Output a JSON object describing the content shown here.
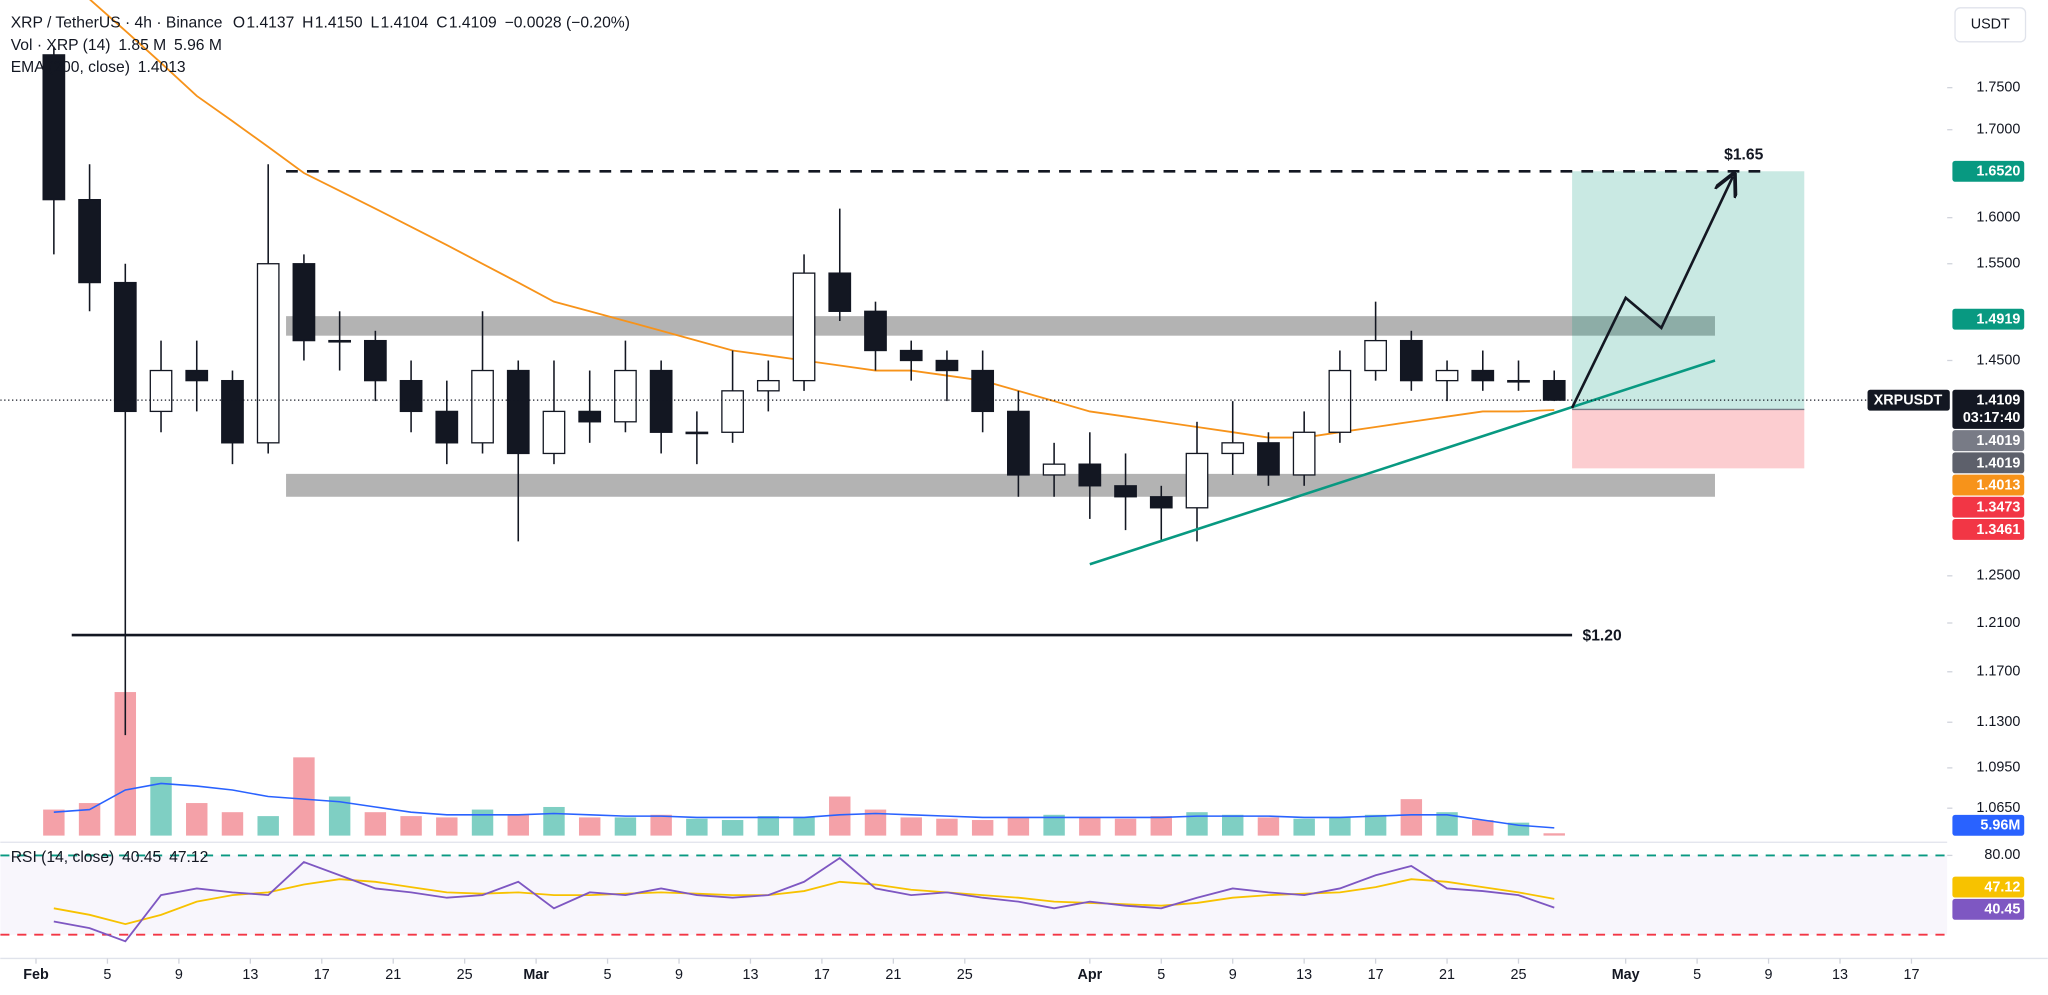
{
  "chart_data": {
    "type": "candlestick",
    "header": {
      "symbol": "XRP / TetherUS · 4h · Binance",
      "ohlc": [
        {
          "key": "O",
          "value": "1.4137"
        },
        {
          "key": "H",
          "value": "1.4150"
        },
        {
          "key": "L",
          "value": "1.4104"
        },
        {
          "key": "C",
          "value": "1.4109"
        }
      ],
      "change": "−0.0028 (−0.20%)"
    },
    "currency": "USDT",
    "log": true,
    "ylim": [
      1.045,
      1.859
    ],
    "yticks": [
      {
        "value": 1.75,
        "label": "1.7500"
      },
      {
        "value": 1.7,
        "label": "1.7000"
      },
      {
        "value": 1.6,
        "label": "1.6000"
      },
      {
        "value": 1.55,
        "label": "1.5500"
      },
      {
        "value": 1.45,
        "label": "1.4500"
      },
      {
        "value": 1.25,
        "label": "1.2500"
      },
      {
        "value": 1.21,
        "label": "1.2100"
      },
      {
        "value": 1.17,
        "label": "1.1700"
      },
      {
        "value": 1.13,
        "label": "1.1300"
      },
      {
        "value": 1.095,
        "label": "1.0950"
      },
      {
        "value": 1.065,
        "label": "1.0650"
      }
    ],
    "xlim": [
      "Jan 30",
      "May 19"
    ],
    "xticks": [
      {
        "value": "Feb 1",
        "label": "Feb"
      },
      {
        "value": "Feb 5",
        "label": "5"
      },
      {
        "value": "Feb 9",
        "label": "9"
      },
      {
        "value": "Feb 13",
        "label": "13"
      },
      {
        "value": "Feb 17",
        "label": "17"
      },
      {
        "value": "Feb 21",
        "label": "21"
      },
      {
        "value": "Feb 25",
        "label": "25"
      },
      {
        "value": "Mar 1",
        "label": "Mar"
      },
      {
        "value": "Mar 5",
        "label": "5"
      },
      {
        "value": "Mar 9",
        "label": "9"
      },
      {
        "value": "Mar 13",
        "label": "13"
      },
      {
        "value": "Mar 17",
        "label": "17"
      },
      {
        "value": "Mar 21",
        "label": "21"
      },
      {
        "value": "Mar 25",
        "label": "25"
      },
      {
        "value": "Apr 1",
        "label": "Apr"
      },
      {
        "value": "Apr 5",
        "label": "5"
      },
      {
        "value": "Apr 9",
        "label": "9"
      },
      {
        "value": "Apr 13",
        "label": "13"
      },
      {
        "value": "Apr 17",
        "label": "17"
      },
      {
        "value": "Apr 21",
        "label": "21"
      },
      {
        "value": "Apr 25",
        "label": "25"
      },
      {
        "value": "May 1",
        "label": "May"
      },
      {
        "value": "May 5",
        "label": "5"
      },
      {
        "value": "May 9",
        "label": "9"
      },
      {
        "value": "May 13",
        "label": "13"
      },
      {
        "value": "May 17",
        "label": "17"
      }
    ],
    "x": [
      "Feb 1",
      "Feb 3",
      "Feb 5",
      "Feb 7",
      "Feb 9",
      "Feb 11",
      "Feb 13",
      "Feb 15",
      "Feb 17",
      "Feb 19",
      "Feb 21",
      "Feb 23",
      "Feb 25",
      "Feb 27",
      "Mar 1",
      "Mar 3",
      "Mar 5",
      "Mar 7",
      "Mar 9",
      "Mar 11",
      "Mar 13",
      "Mar 15",
      "Mar 17",
      "Mar 19",
      "Mar 21",
      "Mar 23",
      "Mar 25",
      "Mar 27",
      "Mar 29",
      "Mar 31",
      "Apr 2",
      "Apr 4",
      "Apr 6",
      "Apr 8",
      "Apr 10",
      "Apr 12",
      "Apr 14",
      "Apr 16",
      "Apr 18",
      "Apr 20",
      "Apr 22",
      "Apr 24",
      "Apr 26"
    ],
    "open": [
      1.79,
      1.62,
      1.53,
      1.4,
      1.44,
      1.43,
      1.37,
      1.55,
      1.47,
      1.47,
      1.43,
      1.4,
      1.37,
      1.44,
      1.36,
      1.4,
      1.39,
      1.44,
      1.38,
      1.38,
      1.42,
      1.43,
      1.54,
      1.5,
      1.46,
      1.45,
      1.44,
      1.4,
      1.34,
      1.35,
      1.33,
      1.32,
      1.31,
      1.36,
      1.37,
      1.34,
      1.38,
      1.44,
      1.47,
      1.43,
      1.44,
      1.43,
      1.43
    ],
    "high": [
      1.8,
      1.66,
      1.55,
      1.47,
      1.47,
      1.44,
      1.66,
      1.56,
      1.5,
      1.48,
      1.45,
      1.43,
      1.5,
      1.45,
      1.45,
      1.44,
      1.47,
      1.45,
      1.4,
      1.46,
      1.45,
      1.56,
      1.61,
      1.51,
      1.47,
      1.46,
      1.46,
      1.42,
      1.37,
      1.38,
      1.36,
      1.33,
      1.39,
      1.41,
      1.38,
      1.4,
      1.46,
      1.51,
      1.48,
      1.45,
      1.46,
      1.45,
      1.44
    ],
    "low": [
      1.56,
      1.5,
      1.12,
      1.38,
      1.4,
      1.35,
      1.36,
      1.45,
      1.44,
      1.41,
      1.38,
      1.35,
      1.36,
      1.28,
      1.35,
      1.37,
      1.38,
      1.36,
      1.35,
      1.37,
      1.4,
      1.42,
      1.49,
      1.44,
      1.43,
      1.41,
      1.38,
      1.32,
      1.32,
      1.3,
      1.29,
      1.28,
      1.28,
      1.34,
      1.33,
      1.33,
      1.37,
      1.43,
      1.42,
      1.41,
      1.42,
      1.42,
      1.41
    ],
    "close": [
      1.62,
      1.53,
      1.4,
      1.44,
      1.43,
      1.37,
      1.55,
      1.47,
      1.47,
      1.43,
      1.4,
      1.37,
      1.44,
      1.36,
      1.4,
      1.39,
      1.44,
      1.38,
      1.38,
      1.42,
      1.43,
      1.54,
      1.5,
      1.46,
      1.45,
      1.44,
      1.4,
      1.34,
      1.35,
      1.33,
      1.32,
      1.31,
      1.36,
      1.37,
      1.34,
      1.38,
      1.44,
      1.47,
      1.43,
      1.44,
      1.43,
      1.43,
      1.4109
    ],
    "colors": {
      "up": "#ffffff",
      "down": "#131722",
      "wick": "#131722"
    },
    "ema": {
      "name": "EMA (200, close)",
      "color": "#f7931a",
      "values": [
        1.9,
        1.86,
        1.82,
        1.78,
        1.74,
        1.71,
        1.68,
        1.65,
        1.63,
        1.61,
        1.59,
        1.57,
        1.55,
        1.53,
        1.51,
        1.5,
        1.49,
        1.48,
        1.47,
        1.46,
        1.455,
        1.45,
        1.445,
        1.44,
        1.44,
        1.435,
        1.43,
        1.42,
        1.41,
        1.4,
        1.395,
        1.39,
        1.385,
        1.38,
        1.375,
        1.375,
        1.38,
        1.385,
        1.39,
        1.395,
        1.4,
        1.4,
        1.4013
      ]
    },
    "volume": {
      "name": "Vol · XRP (14)",
      "legend_labels": [
        "1.85 M",
        "5.96 M"
      ],
      "axis_label": "5.96M",
      "ylim": [
        0,
        150
      ],
      "up_color": "#7fcfc3",
      "down_color": "#f4a1a8",
      "ma_color": "#2962ff",
      "values": [
        20,
        25,
        110,
        45,
        25,
        18,
        15,
        60,
        30,
        18,
        15,
        14,
        20,
        16,
        22,
        14,
        14,
        16,
        13,
        12,
        15,
        14,
        30,
        20,
        14,
        13,
        12,
        14,
        16,
        14,
        13,
        15,
        18,
        16,
        14,
        13,
        14,
        16,
        28,
        18,
        12,
        10,
        1.85
      ],
      "ma": [
        18,
        20,
        35,
        40,
        38,
        35,
        30,
        28,
        26,
        22,
        18,
        16,
        16,
        16,
        17,
        16,
        15,
        15,
        14,
        14,
        14,
        14,
        16,
        17,
        16,
        15,
        14,
        14,
        14,
        14,
        14,
        14,
        15,
        15,
        15,
        14,
        14,
        15,
        16,
        16,
        12,
        8,
        5.96
      ]
    },
    "rsi": {
      "name": "RSI (14, close)",
      "color": "#7e57c2",
      "ma_color": "#f7c200",
      "ylim": [
        4,
        89
      ],
      "yticks": [
        {
          "value": 80,
          "label": "80.00"
        }
      ],
      "bands": [
        80,
        20
      ],
      "band_colors": [
        "#089981",
        "#f23645"
      ],
      "values": [
        30,
        25,
        15,
        50,
        55,
        52,
        50,
        75,
        65,
        55,
        52,
        48,
        50,
        60,
        40,
        52,
        50,
        55,
        50,
        48,
        50,
        60,
        78,
        55,
        50,
        52,
        48,
        45,
        40,
        45,
        42,
        40,
        48,
        55,
        52,
        50,
        55,
        65,
        72,
        55,
        53,
        50,
        40.45
      ],
      "ma": [
        40,
        35,
        28,
        35,
        45,
        50,
        52,
        58,
        62,
        60,
        56,
        52,
        51,
        52,
        50,
        50,
        51,
        52,
        51,
        50,
        50,
        53,
        60,
        58,
        54,
        52,
        50,
        48,
        45,
        44,
        43,
        42,
        44,
        48,
        50,
        51,
        52,
        56,
        62,
        60,
        56,
        52,
        47.12
      ]
    },
    "last_price": {
      "symbol": "XRPUSDT",
      "value": 1.4109,
      "label": "1.4109",
      "countdown": "03:17:40"
    },
    "price_tags": [
      {
        "value": 1.652,
        "label": "1.6520",
        "color": "#089981"
      },
      {
        "value": 1.4919,
        "label": "1.4919",
        "color": "#089981"
      },
      {
        "value": 1.4019,
        "label": "1.4019",
        "color": "#787b86"
      },
      {
        "value": 1.4019,
        "label": "1.4019",
        "color": "#5d606b"
      },
      {
        "value": 1.4013,
        "label": "1.4013",
        "color": "#f7931a"
      },
      {
        "value": 1.3473,
        "label": "1.3473",
        "color": "#f23645"
      },
      {
        "value": 1.3461,
        "label": "1.3461",
        "color": "#f23645"
      }
    ],
    "zones": [
      {
        "from": "Feb 15",
        "to": "May 6",
        "low": 1.475,
        "high": 1.495
      },
      {
        "from": "Feb 15",
        "to": "May 6",
        "low": 1.32,
        "high": 1.341
      }
    ],
    "levels": [
      {
        "from": "Feb 15",
        "to": "May 9",
        "value": 1.652,
        "dashed": true,
        "label": "$1.65"
      },
      {
        "from": "Feb 3",
        "to": "Apr 28",
        "value": 1.2,
        "dashed": false,
        "label": "$1.20"
      }
    ],
    "trendline": {
      "x": [
        "Apr 1",
        "May 6"
      ],
      "y": [
        1.26,
        1.45
      ],
      "color": "#089981"
    },
    "position": {
      "from": "Apr 28",
      "to": "May 11",
      "target": 1.652,
      "entry": 1.4019,
      "stop": 1.3461
    },
    "arrow": {
      "x": [
        "Apr 28",
        "May 1",
        "May 3",
        "May 7"
      ],
      "y": [
        1.4033,
        1.514,
        1.483,
        1.646
      ]
    }
  }
}
